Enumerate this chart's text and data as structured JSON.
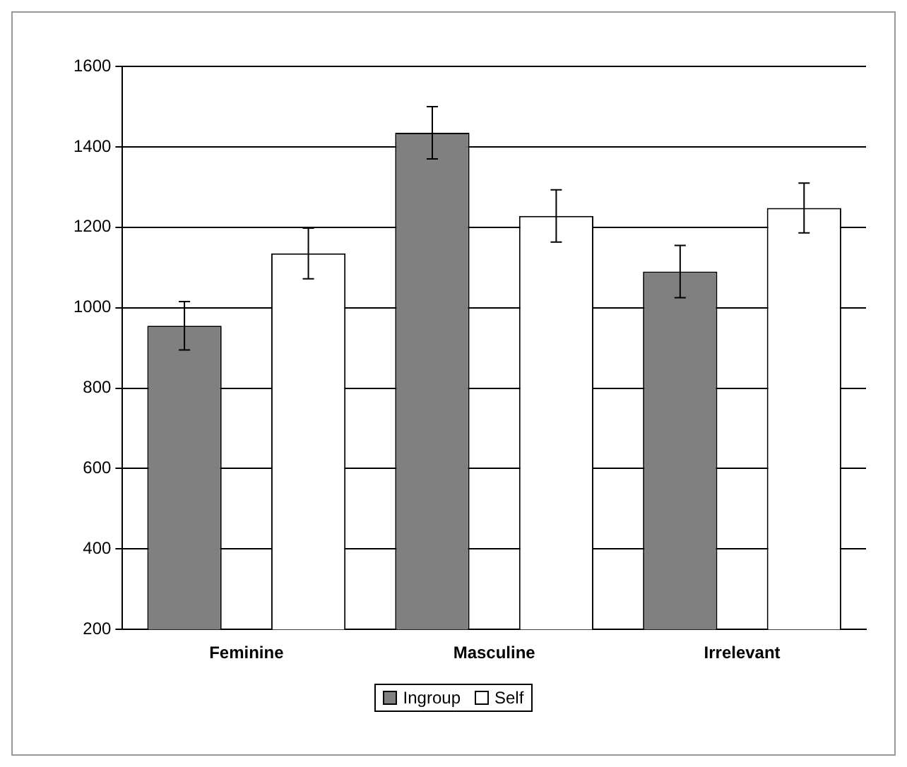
{
  "chart_data": {
    "type": "bar",
    "categories": [
      "Feminine",
      "Masculine",
      "Irrelevant"
    ],
    "series": [
      {
        "name": "Ingroup",
        "color": "#808080",
        "values": [
          955,
          1435,
          1090
        ],
        "errors": [
          60,
          65,
          65
        ]
      },
      {
        "name": "Self",
        "color": "#ffffff",
        "values": [
          1135,
          1228,
          1248
        ],
        "errors": [
          63,
          65,
          62
        ]
      }
    ],
    "ylim": [
      200,
      1600
    ],
    "yticks": [
      200,
      400,
      600,
      800,
      1000,
      1200,
      1400,
      1600
    ],
    "grid": "y",
    "legend": "bottom"
  }
}
